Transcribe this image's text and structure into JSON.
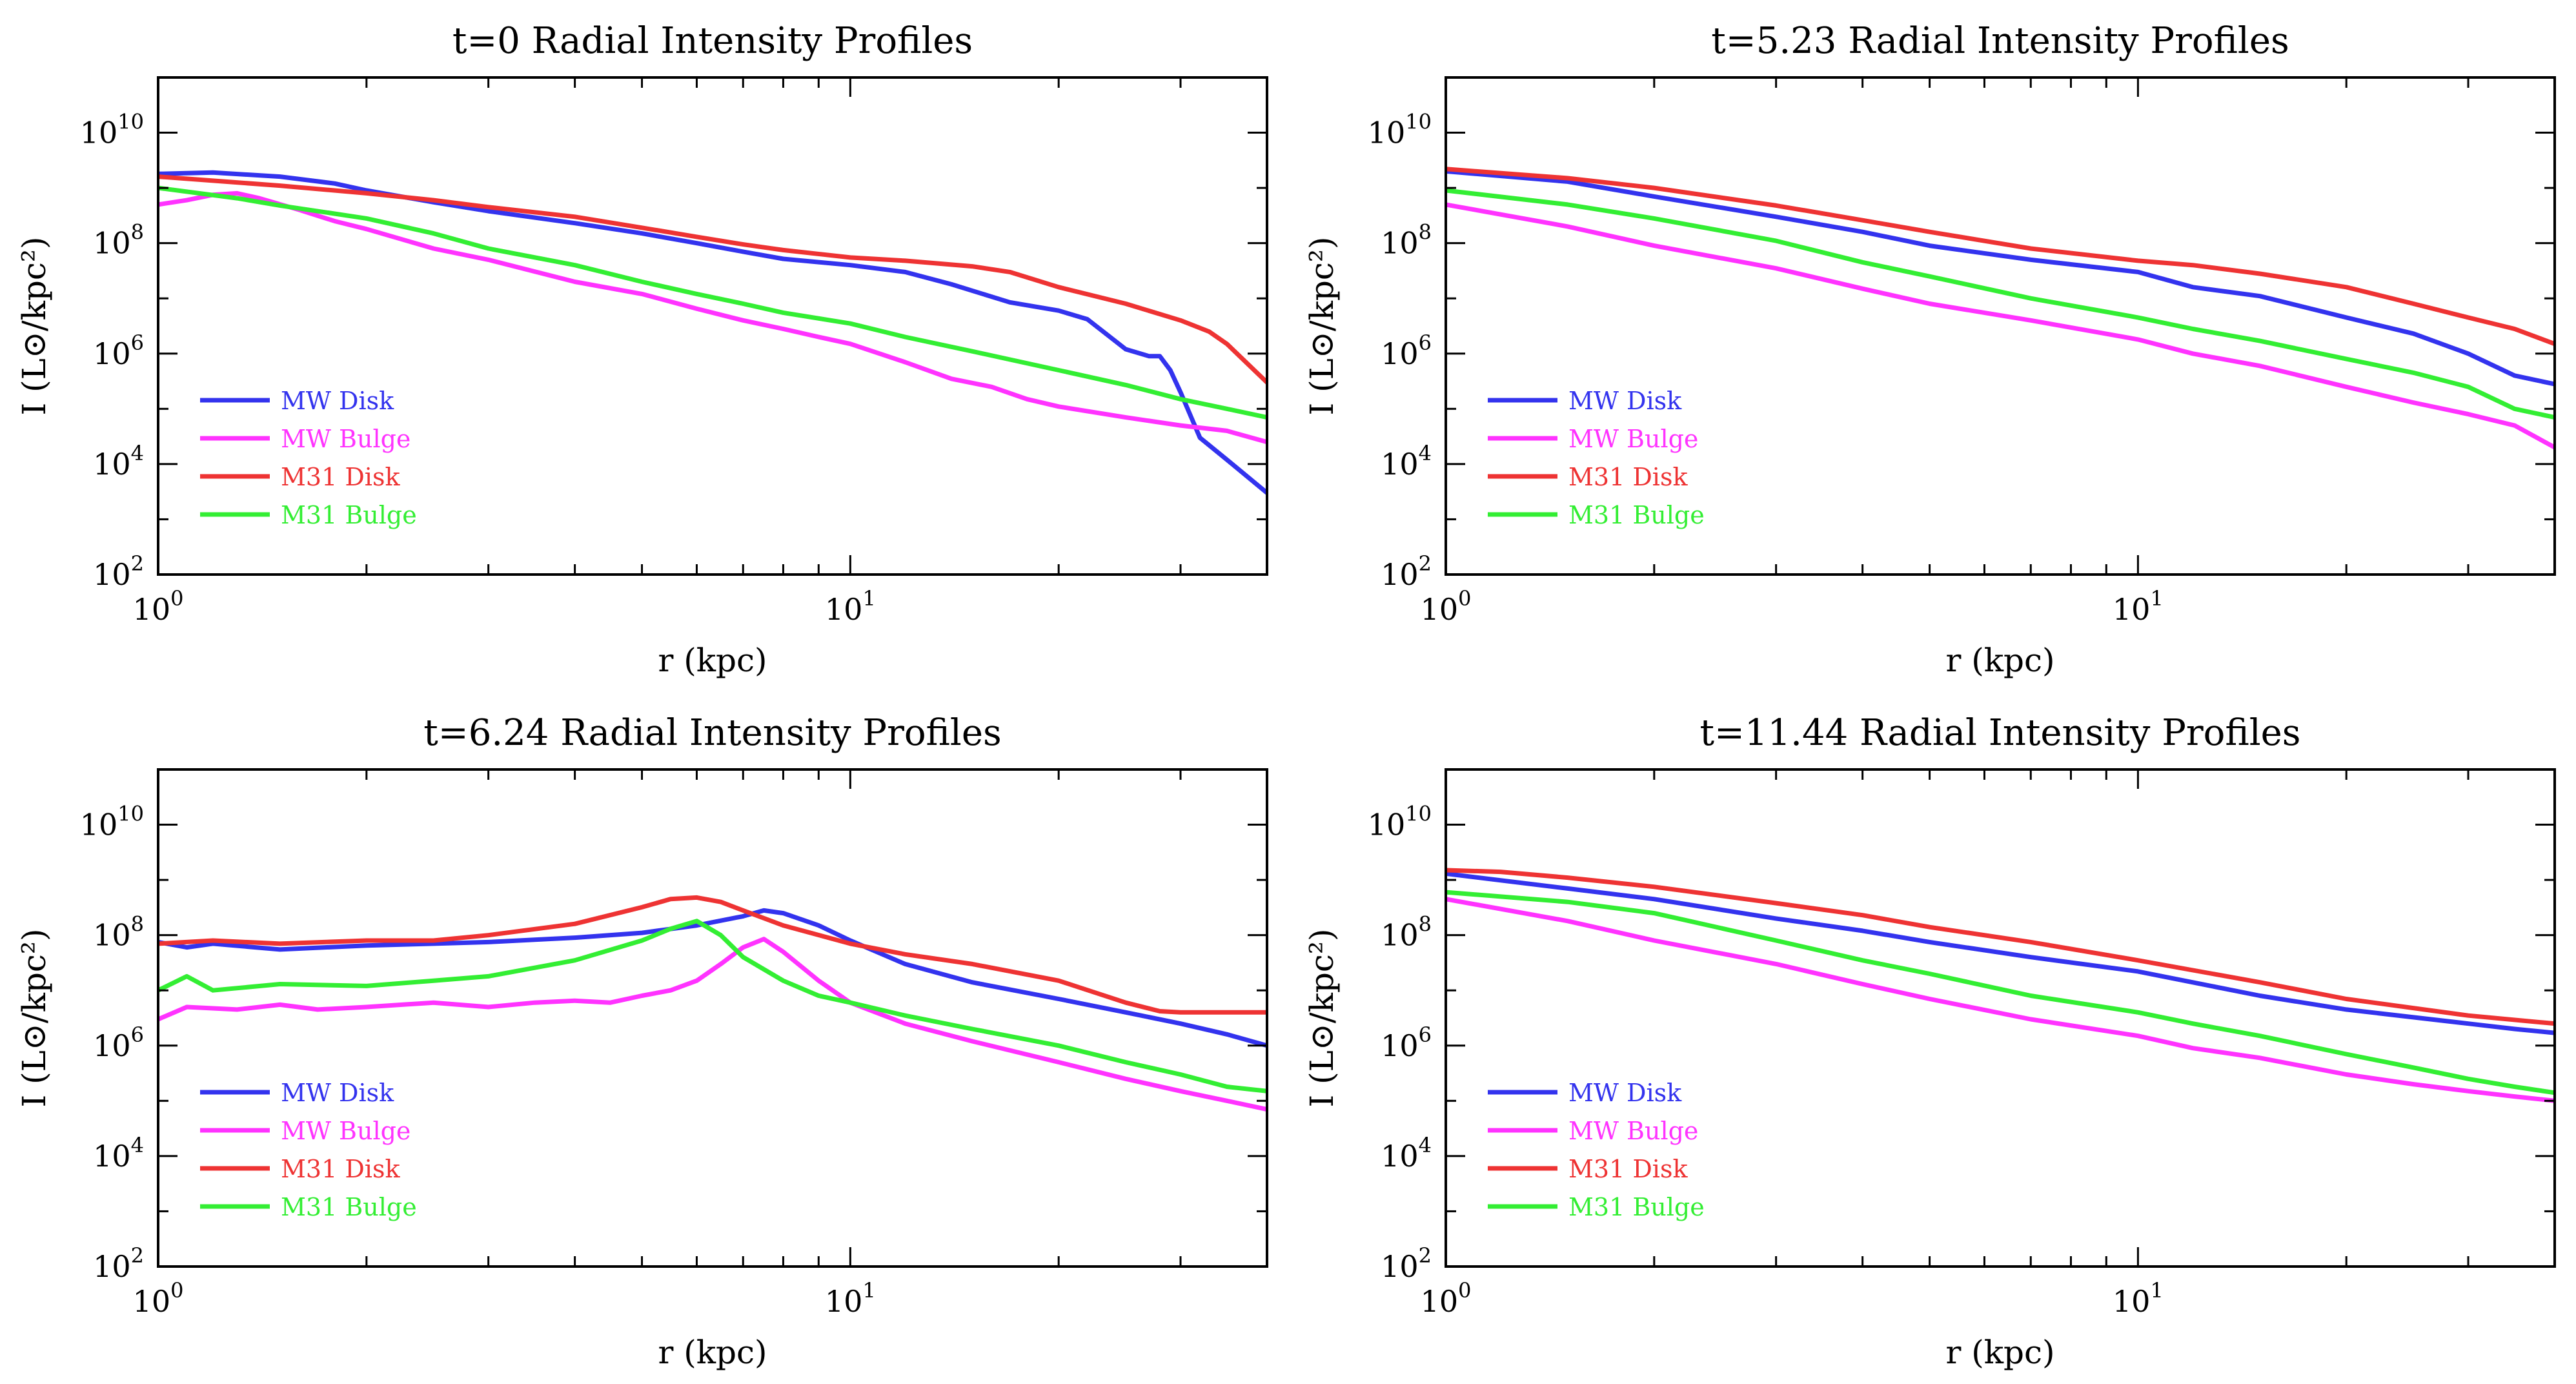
{
  "figure": {
    "colors": {
      "mw_disk": "#3333ee",
      "mw_bulge": "#ff33ff",
      "m31_disk": "#ee3333",
      "m31_bulge": "#33ee33"
    }
  },
  "chart_data": [
    {
      "type": "line",
      "title": "t=0 Radial Intensity Profiles",
      "xlabel": "r (kpc)",
      "ylabel": "I (L⊙/kpc²)",
      "xscale": "log",
      "yscale": "log",
      "xlim": [
        1,
        40
      ],
      "ylim": [
        100,
        100000000000
      ],
      "xticks": [
        {
          "value": 1,
          "base": "10",
          "exp": "0"
        },
        {
          "value": 10,
          "base": "10",
          "exp": "1"
        }
      ],
      "yticks": [
        {
          "value": 100,
          "base": "10",
          "exp": "2"
        },
        {
          "value": 10000,
          "base": "10",
          "exp": "4"
        },
        {
          "value": 1000000,
          "base": "10",
          "exp": "6"
        },
        {
          "value": 100000000,
          "base": "10",
          "exp": "8"
        },
        {
          "value": 10000000000,
          "base": "10",
          "exp": "10"
        }
      ],
      "legend_position": "lower-left",
      "grid": false,
      "series": [
        {
          "name": "MW Disk",
          "color": "#3333ee",
          "x": [
            1.0,
            1.2,
            1.5,
            1.8,
            2.0,
            2.5,
            3.0,
            4.0,
            5.0,
            6.0,
            7.0,
            8.0,
            10.0,
            12.0,
            14.0,
            17.0,
            20.0,
            22.0,
            25.0,
            27.0,
            28.0,
            29.0,
            30.0,
            32.0,
            35.0,
            40.0
          ],
          "y": [
            1800000000.0,
            1900000000.0,
            1600000000.0,
            1200000000.0,
            900000000.0,
            550000000.0,
            380000000.0,
            230000000.0,
            150000000.0,
            100000000.0,
            70000000.0,
            52000000.0,
            40000000.0,
            30000000.0,
            18000000.0,
            8500000.0,
            6000000.0,
            4200000.0,
            1200000.0,
            900000.0,
            900000.0,
            500000.0,
            200000.0,
            30000.0,
            12000.0,
            3000.0
          ]
        },
        {
          "name": "MW Bulge",
          "color": "#ff33ff",
          "x": [
            1.0,
            1.1,
            1.2,
            1.3,
            1.4,
            1.6,
            1.8,
            2.0,
            2.5,
            3.0,
            4.0,
            5.0,
            6.0,
            7.0,
            8.0,
            9.0,
            10.0,
            12.0,
            14.0,
            16.0,
            18.0,
            20.0,
            25.0,
            30.0,
            35.0,
            40.0
          ],
          "y": [
            500000000.0,
            600000000.0,
            750000000.0,
            800000000.0,
            650000000.0,
            400000000.0,
            250000000.0,
            180000000.0,
            80000000.0,
            50000000.0,
            20000000.0,
            12000000.0,
            6500000.0,
            4000000.0,
            2800000.0,
            2000000.0,
            1500000.0,
            700000.0,
            350000.0,
            250000.0,
            150000.0,
            110000.0,
            70000.0,
            50000.0,
            40000.0,
            25000.0
          ]
        },
        {
          "name": "M31 Disk",
          "color": "#ee3333",
          "x": [
            1.0,
            1.5,
            2.0,
            2.5,
            3.0,
            4.0,
            5.0,
            6.0,
            7.0,
            8.0,
            10.0,
            12.0,
            15.0,
            17.0,
            20.0,
            25.0,
            30.0,
            33.0,
            35.0,
            40.0
          ],
          "y": [
            1600000000.0,
            1100000000.0,
            800000000.0,
            600000000.0,
            450000000.0,
            300000000.0,
            190000000.0,
            130000000.0,
            95000000.0,
            75000000.0,
            55000000.0,
            48000000.0,
            38000000.0,
            30000000.0,
            16000000.0,
            8000000.0,
            4000000.0,
            2500000.0,
            1500000.0,
            300000.0
          ]
        },
        {
          "name": "M31 Bulge",
          "color": "#33ee33",
          "x": [
            1.0,
            1.3,
            1.5,
            2.0,
            2.5,
            3.0,
            4.0,
            5.0,
            6.0,
            7.0,
            8.0,
            10.0,
            12.0,
            15.0,
            20.0,
            25.0,
            30.0,
            35.0,
            40.0
          ],
          "y": [
            1000000000.0,
            650000000.0,
            480000000.0,
            280000000.0,
            150000000.0,
            80000000.0,
            40000000.0,
            20000000.0,
            12000000.0,
            8000000.0,
            5500000.0,
            3500000.0,
            2000000.0,
            1100000.0,
            500000.0,
            270000.0,
            150000.0,
            100000.0,
            70000.0
          ]
        }
      ]
    },
    {
      "type": "line",
      "title": "t=5.23 Radial Intensity Profiles",
      "xlabel": "r (kpc)",
      "ylabel": "I (L⊙/kpc²)",
      "xscale": "log",
      "yscale": "log",
      "xlim": [
        1,
        40
      ],
      "ylim": [
        100,
        100000000000
      ],
      "xticks": [
        {
          "value": 1,
          "base": "10",
          "exp": "0"
        },
        {
          "value": 10,
          "base": "10",
          "exp": "1"
        }
      ],
      "yticks": [
        {
          "value": 100,
          "base": "10",
          "exp": "2"
        },
        {
          "value": 10000,
          "base": "10",
          "exp": "4"
        },
        {
          "value": 1000000,
          "base": "10",
          "exp": "6"
        },
        {
          "value": 100000000,
          "base": "10",
          "exp": "8"
        },
        {
          "value": 10000000000,
          "base": "10",
          "exp": "10"
        }
      ],
      "legend_position": "lower-left",
      "grid": false,
      "series": [
        {
          "name": "MW Disk",
          "color": "#3333ee",
          "x": [
            1.0,
            1.5,
            2.0,
            3.0,
            4.0,
            5.0,
            7.0,
            10.0,
            12.0,
            15.0,
            20.0,
            25.0,
            30.0,
            35.0,
            40.0
          ],
          "y": [
            2000000000.0,
            1300000000.0,
            700000000.0,
            300000000.0,
            160000000.0,
            90000000.0,
            50000000.0,
            30000000.0,
            16000000.0,
            11000000.0,
            4500000.0,
            2300000.0,
            1000000.0,
            400000.0,
            280000.0
          ]
        },
        {
          "name": "MW Bulge",
          "color": "#ff33ff",
          "x": [
            1.0,
            1.5,
            2.0,
            3.0,
            4.0,
            5.0,
            7.0,
            10.0,
            12.0,
            15.0,
            20.0,
            25.0,
            30.0,
            35.0,
            40.0
          ],
          "y": [
            500000000.0,
            200000000.0,
            90000000.0,
            35000000.0,
            15000000.0,
            8000000.0,
            4000000.0,
            1800000.0,
            1000000.0,
            600000.0,
            250000.0,
            130000.0,
            80000.0,
            50000.0,
            20000.0
          ]
        },
        {
          "name": "M31 Disk",
          "color": "#ee3333",
          "x": [
            1.0,
            1.5,
            2.0,
            3.0,
            4.0,
            5.0,
            7.0,
            10.0,
            12.0,
            15.0,
            20.0,
            25.0,
            30.0,
            35.0,
            40.0
          ],
          "y": [
            2200000000.0,
            1500000000.0,
            1000000000.0,
            480000000.0,
            260000000.0,
            160000000.0,
            80000000.0,
            48000000.0,
            40000000.0,
            28000000.0,
            16000000.0,
            8000000.0,
            4500000.0,
            2800000.0,
            1500000.0
          ]
        },
        {
          "name": "M31 Bulge",
          "color": "#33ee33",
          "x": [
            1.0,
            1.5,
            2.0,
            3.0,
            4.0,
            5.0,
            7.0,
            10.0,
            12.0,
            15.0,
            20.0,
            25.0,
            30.0,
            35.0,
            40.0
          ],
          "y": [
            900000000.0,
            500000000.0,
            280000000.0,
            110000000.0,
            45000000.0,
            25000000.0,
            10000000.0,
            4500000.0,
            2800000.0,
            1700000.0,
            800000.0,
            450000.0,
            250000.0,
            100000.0,
            70000.0
          ]
        }
      ]
    },
    {
      "type": "line",
      "title": "t=6.24 Radial Intensity Profiles",
      "xlabel": "r (kpc)",
      "ylabel": "I (L⊙/kpc²)",
      "xscale": "log",
      "yscale": "log",
      "xlim": [
        1,
        40
      ],
      "ylim": [
        100,
        100000000000
      ],
      "xticks": [
        {
          "value": 1,
          "base": "10",
          "exp": "0"
        },
        {
          "value": 10,
          "base": "10",
          "exp": "1"
        }
      ],
      "yticks": [
        {
          "value": 100,
          "base": "10",
          "exp": "2"
        },
        {
          "value": 10000,
          "base": "10",
          "exp": "4"
        },
        {
          "value": 1000000,
          "base": "10",
          "exp": "6"
        },
        {
          "value": 100000000,
          "base": "10",
          "exp": "8"
        },
        {
          "value": 10000000000,
          "base": "10",
          "exp": "10"
        }
      ],
      "legend_position": "lower-left",
      "grid": false,
      "series": [
        {
          "name": "MW Disk",
          "color": "#3333ee",
          "x": [
            1.0,
            1.1,
            1.2,
            1.5,
            2.0,
            2.5,
            3.0,
            4.0,
            5.0,
            6.0,
            7.0,
            7.5,
            8.0,
            9.0,
            10.0,
            12.0,
            15.0,
            20.0,
            25.0,
            30.0,
            35.0,
            40.0
          ],
          "y": [
            75000000.0,
            60000000.0,
            70000000.0,
            55000000.0,
            65000000.0,
            70000000.0,
            75000000.0,
            90000000.0,
            110000000.0,
            150000000.0,
            220000000.0,
            280000000.0,
            250000000.0,
            150000000.0,
            80000000.0,
            30000000.0,
            14000000.0,
            7000000.0,
            4000000.0,
            2500000.0,
            1600000.0,
            1000000.0
          ]
        },
        {
          "name": "MW Bulge",
          "color": "#ff33ff",
          "x": [
            1.0,
            1.1,
            1.3,
            1.5,
            1.7,
            2.0,
            2.5,
            3.0,
            3.5,
            4.0,
            4.5,
            5.0,
            5.5,
            6.0,
            6.5,
            7.0,
            7.5,
            8.0,
            9.0,
            10.0,
            12.0,
            15.0,
            20.0,
            25.0,
            30.0,
            35.0,
            40.0
          ],
          "y": [
            3000000.0,
            5000000.0,
            4500000.0,
            5500000.0,
            4500000.0,
            5000000.0,
            6000000.0,
            5000000.0,
            6000000.0,
            6500000.0,
            6000000.0,
            8000000.0,
            10000000.0,
            15000000.0,
            30000000.0,
            60000000.0,
            85000000.0,
            50000000.0,
            15000000.0,
            6000000.0,
            2500000.0,
            1200000.0,
            500000.0,
            250000.0,
            150000.0,
            100000.0,
            70000.0
          ]
        },
        {
          "name": "M31 Disk",
          "color": "#ee3333",
          "x": [
            1.0,
            1.2,
            1.5,
            2.0,
            2.5,
            3.0,
            4.0,
            5.0,
            5.5,
            6.0,
            6.5,
            7.0,
            8.0,
            10.0,
            12.0,
            15.0,
            20.0,
            25.0,
            28.0,
            30.0,
            35.0,
            40.0
          ],
          "y": [
            70000000.0,
            80000000.0,
            70000000.0,
            80000000.0,
            80000000.0,
            100000000.0,
            160000000.0,
            320000000.0,
            450000000.0,
            480000000.0,
            400000000.0,
            280000000.0,
            150000000.0,
            70000000.0,
            45000000.0,
            30000000.0,
            15000000.0,
            6000000.0,
            4200000.0,
            4000000.0,
            4000000.0,
            4000000.0
          ]
        },
        {
          "name": "M31 Bulge",
          "color": "#33ee33",
          "x": [
            1.0,
            1.1,
            1.2,
            1.5,
            2.0,
            2.5,
            3.0,
            4.0,
            5.0,
            5.5,
            6.0,
            6.5,
            7.0,
            8.0,
            9.0,
            10.0,
            12.0,
            15.0,
            20.0,
            25.0,
            30.0,
            35.0,
            40.0
          ],
          "y": [
            10000000.0,
            18000000.0,
            10000000.0,
            13000000.0,
            12000000.0,
            15000000.0,
            18000000.0,
            35000000.0,
            80000000.0,
            130000000.0,
            180000000.0,
            100000000.0,
            40000000.0,
            15000000.0,
            8000000.0,
            6000000.0,
            3500000.0,
            2000000.0,
            1000000.0,
            500000.0,
            300000.0,
            180000.0,
            150000.0
          ]
        }
      ]
    },
    {
      "type": "line",
      "title": "t=11.44 Radial Intensity Profiles",
      "xlabel": "r (kpc)",
      "ylabel": "I (L⊙/kpc²)",
      "xscale": "log",
      "yscale": "log",
      "xlim": [
        1,
        40
      ],
      "ylim": [
        100,
        100000000000
      ],
      "xticks": [
        {
          "value": 1,
          "base": "10",
          "exp": "0"
        },
        {
          "value": 10,
          "base": "10",
          "exp": "1"
        }
      ],
      "yticks": [
        {
          "value": 100,
          "base": "10",
          "exp": "2"
        },
        {
          "value": 10000,
          "base": "10",
          "exp": "4"
        },
        {
          "value": 1000000,
          "base": "10",
          "exp": "6"
        },
        {
          "value": 100000000,
          "base": "10",
          "exp": "8"
        },
        {
          "value": 10000000000,
          "base": "10",
          "exp": "10"
        }
      ],
      "legend_position": "lower-left",
      "grid": false,
      "series": [
        {
          "name": "MW Disk",
          "color": "#3333ee",
          "x": [
            1.0,
            1.5,
            2.0,
            3.0,
            4.0,
            5.0,
            7.0,
            10.0,
            15.0,
            20.0,
            30.0,
            35.0,
            40.0
          ],
          "y": [
            1300000000.0,
            700000000.0,
            450000000.0,
            200000000.0,
            120000000.0,
            75000000.0,
            40000000.0,
            22000000.0,
            8000000.0,
            4500000.0,
            2500000.0,
            2000000.0,
            1700000.0
          ]
        },
        {
          "name": "MW Bulge",
          "color": "#ff33ff",
          "x": [
            1.0,
            1.5,
            2.0,
            3.0,
            4.0,
            5.0,
            7.0,
            10.0,
            12.0,
            15.0,
            20.0,
            25.0,
            30.0,
            35.0,
            40.0
          ],
          "y": [
            450000000.0,
            180000000.0,
            80000000.0,
            30000000.0,
            13000000.0,
            7000000.0,
            3000000.0,
            1500000.0,
            900000.0,
            600000.0,
            300000.0,
            200000.0,
            150000.0,
            120000.0,
            100000.0
          ]
        },
        {
          "name": "M31 Disk",
          "color": "#ee3333",
          "x": [
            1.0,
            1.2,
            1.5,
            2.0,
            3.0,
            4.0,
            5.0,
            7.0,
            10.0,
            15.0,
            20.0,
            30.0,
            40.0
          ],
          "y": [
            1500000000.0,
            1400000000.0,
            1100000000.0,
            750000000.0,
            380000000.0,
            230000000.0,
            140000000.0,
            75000000.0,
            35000000.0,
            14000000.0,
            7000000.0,
            3500000.0,
            2500000.0
          ]
        },
        {
          "name": "M31 Bulge",
          "color": "#33ee33",
          "x": [
            1.0,
            1.5,
            2.0,
            3.0,
            4.0,
            5.0,
            7.0,
            10.0,
            12.0,
            15.0,
            20.0,
            25.0,
            30.0,
            35.0,
            40.0
          ],
          "y": [
            600000000.0,
            400000000.0,
            250000000.0,
            80000000.0,
            35000000.0,
            20000000.0,
            8000000.0,
            4000000.0,
            2500000.0,
            1500000.0,
            700000.0,
            400000.0,
            250000.0,
            180000.0,
            140000.0
          ]
        }
      ]
    }
  ]
}
